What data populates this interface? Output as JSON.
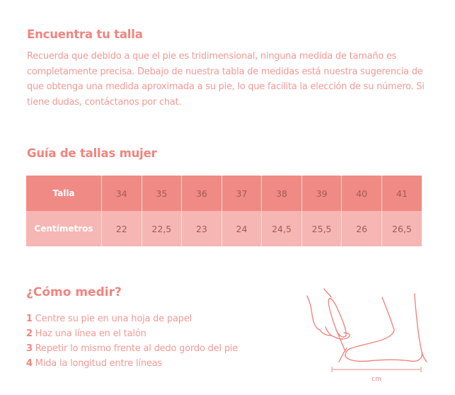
{
  "intro": {
    "title": "Encuentra tu talla",
    "text": "Recuerda que debido a que el pie es tridimensional, ninguna medida de tamaño es completamente precisa. Debajo de nuestra tabla de medidas está nuestra sugerencia de que obtenga una medida aproximada a su pie, lo que facilita la elección de su número. Si tiene dudas, contáctanos por chat."
  },
  "size_guide": {
    "title": "Guía de tallas mujer",
    "rows": [
      {
        "label": "Talla",
        "values": [
          "34",
          "35",
          "36",
          "37",
          "38",
          "39",
          "40",
          "41"
        ]
      },
      {
        "label": "Centímetros",
        "values": [
          "22",
          "22,5",
          "23",
          "24",
          "24,5",
          "25,5",
          "26",
          "26,5"
        ]
      }
    ]
  },
  "how_to": {
    "title": "¿Cómo medir?",
    "steps": [
      {
        "num": "1",
        "text": "Centre su pie en una hoja de papel"
      },
      {
        "num": "2",
        "text": "Haz una línea en el talón"
      },
      {
        "num": "3",
        "text": "Repetir lo mismo frente al dedo gordo del pie"
      },
      {
        "num": "4",
        "text": "Mida la longitud entre líneas"
      }
    ],
    "illustration_label": "cm"
  },
  "colors": {
    "accent": "#f0857f",
    "header_row": "#f08a85",
    "cm_row": "#f6b6b3",
    "body_text": "#f29a95"
  }
}
